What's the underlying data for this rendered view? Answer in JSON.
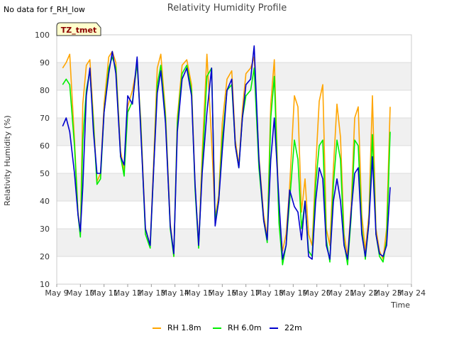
{
  "status_text": "No data for f_RH_low",
  "chart_data": {
    "type": "line",
    "title": "Relativity Humidity Profile",
    "xlabel": "Time",
    "ylabel": "Relativity Humidity (%)",
    "ylim": [
      10,
      100
    ],
    "xlim": [
      9,
      24
    ],
    "yticks": [
      10,
      20,
      30,
      40,
      50,
      60,
      70,
      80,
      90,
      100
    ],
    "xticks": [
      {
        "v": 9,
        "label": "May 9"
      },
      {
        "v": 10,
        "label": "May 10"
      },
      {
        "v": 11,
        "label": "May 11"
      },
      {
        "v": 12,
        "label": "May 12"
      },
      {
        "v": 13,
        "label": "May 13"
      },
      {
        "v": 14,
        "label": "May 14"
      },
      {
        "v": 15,
        "label": "May 15"
      },
      {
        "v": 16,
        "label": "May 16"
      },
      {
        "v": 17,
        "label": "May 17"
      },
      {
        "v": 18,
        "label": "May 18"
      },
      {
        "v": 19,
        "label": "May 19"
      },
      {
        "v": 20,
        "label": "May 20"
      },
      {
        "v": 21,
        "label": "May 21"
      },
      {
        "v": 22,
        "label": "May 22"
      },
      {
        "v": 23,
        "label": "May 23"
      },
      {
        "v": 24,
        "label": "May 24"
      }
    ],
    "badge": "TZ_tmet",
    "grid": true,
    "legend_position": "bottom",
    "series": [
      {
        "name": "RH 1.8m",
        "color": "#ffa500",
        "x": [
          9.25,
          9.4,
          9.55,
          9.75,
          9.9,
          10.0,
          10.1,
          10.25,
          10.4,
          10.55,
          10.7,
          10.85,
          11.0,
          11.2,
          11.35,
          11.5,
          11.7,
          11.85,
          12.0,
          12.2,
          12.4,
          12.55,
          12.75,
          12.95,
          13.1,
          13.25,
          13.4,
          13.6,
          13.8,
          13.95,
          14.1,
          14.3,
          14.5,
          14.7,
          14.85,
          15.0,
          15.15,
          15.35,
          15.55,
          15.7,
          15.85,
          16.0,
          16.2,
          16.4,
          16.55,
          16.7,
          16.85,
          17.0,
          17.2,
          17.35,
          17.55,
          17.75,
          17.9,
          18.05,
          18.2,
          18.4,
          18.55,
          18.7,
          18.85,
          19.05,
          19.2,
          19.35,
          19.5,
          19.65,
          19.8,
          19.95,
          20.1,
          20.25,
          20.4,
          20.55,
          20.7,
          20.85,
          21.0,
          21.15,
          21.3,
          21.45,
          21.6,
          21.75,
          21.9,
          22.05,
          22.2,
          22.35,
          22.5,
          22.65,
          22.8,
          22.95,
          23.1
        ],
        "y": [
          88,
          90,
          93,
          62,
          36,
          28,
          75,
          89,
          91,
          70,
          47,
          50,
          75,
          92,
          94,
          90,
          58,
          51,
          74,
          80,
          89,
          70,
          30,
          24,
          55,
          88,
          93,
          72,
          32,
          20,
          70,
          89,
          91,
          82,
          46,
          24,
          57,
          93,
          62,
          34,
          42,
          68,
          84,
          87,
          62,
          53,
          73,
          86,
          88,
          92,
          56,
          35,
          27,
          75,
          91,
          34,
          22,
          28,
          45,
          78,
          74,
          36,
          48,
          28,
          24,
          52,
          76,
          82,
          30,
          24,
          52,
          75,
          63,
          28,
          20,
          38,
          70,
          74,
          35,
          22,
          35,
          78,
          30,
          22,
          19,
          30,
          74
        ]
      },
      {
        "name": "RH 6.0m",
        "color": "#00ee00",
        "x": [
          9.25,
          9.4,
          9.55,
          9.75,
          9.9,
          10.0,
          10.1,
          10.25,
          10.4,
          10.55,
          10.7,
          10.85,
          11.0,
          11.2,
          11.35,
          11.5,
          11.7,
          11.85,
          12.0,
          12.2,
          12.4,
          12.55,
          12.75,
          12.95,
          13.1,
          13.25,
          13.4,
          13.6,
          13.8,
          13.95,
          14.1,
          14.3,
          14.5,
          14.7,
          14.85,
          15.0,
          15.15,
          15.35,
          15.55,
          15.7,
          15.85,
          16.0,
          16.2,
          16.4,
          16.55,
          16.7,
          16.85,
          17.0,
          17.2,
          17.35,
          17.55,
          17.75,
          17.9,
          18.05,
          18.2,
          18.4,
          18.55,
          18.7,
          18.85,
          19.05,
          19.2,
          19.35,
          19.5,
          19.65,
          19.8,
          19.95,
          20.1,
          20.25,
          20.4,
          20.55,
          20.7,
          20.85,
          21.0,
          21.15,
          21.3,
          21.45,
          21.6,
          21.75,
          21.9,
          22.05,
          22.2,
          22.35,
          22.5,
          22.65,
          22.8,
          22.95,
          23.1
        ],
        "y": [
          82,
          84,
          82,
          60,
          35,
          27,
          62,
          80,
          87,
          68,
          46,
          48,
          72,
          88,
          92,
          88,
          56,
          49,
          72,
          76,
          90,
          68,
          28,
          23,
          52,
          82,
          89,
          70,
          30,
          20,
          68,
          86,
          89,
          80,
          44,
          23,
          52,
          85,
          88,
          33,
          40,
          62,
          80,
          82,
          60,
          52,
          70,
          78,
          80,
          88,
          52,
          33,
          25,
          70,
          85,
          32,
          17,
          24,
          40,
          62,
          55,
          30,
          40,
          22,
          20,
          46,
          60,
          62,
          26,
          18,
          46,
          62,
          55,
          25,
          17,
          34,
          62,
          60,
          30,
          19,
          32,
          64,
          28,
          20,
          18,
          26,
          65
        ]
      },
      {
        "name": "22m",
        "color": "#0000cd",
        "x": [
          9.25,
          9.4,
          9.55,
          9.75,
          9.9,
          10.0,
          10.1,
          10.25,
          10.4,
          10.55,
          10.7,
          10.85,
          11.0,
          11.2,
          11.35,
          11.5,
          11.7,
          11.85,
          12.0,
          12.2,
          12.4,
          12.55,
          12.75,
          12.95,
          13.1,
          13.25,
          13.4,
          13.6,
          13.8,
          13.95,
          14.1,
          14.3,
          14.5,
          14.7,
          14.85,
          15.0,
          15.15,
          15.35,
          15.55,
          15.7,
          15.85,
          16.0,
          16.2,
          16.4,
          16.55,
          16.7,
          16.85,
          17.0,
          17.2,
          17.35,
          17.55,
          17.75,
          17.9,
          18.05,
          18.2,
          18.4,
          18.55,
          18.7,
          18.85,
          19.05,
          19.2,
          19.35,
          19.5,
          19.65,
          19.8,
          19.95,
          20.1,
          20.25,
          20.4,
          20.55,
          20.7,
          20.85,
          21.0,
          21.15,
          21.3,
          21.45,
          21.6,
          21.75,
          21.9,
          22.05,
          22.2,
          22.35,
          22.5,
          22.65,
          22.8,
          22.95,
          23.1
        ],
        "y": [
          67,
          70,
          65,
          50,
          35,
          29,
          45,
          78,
          88,
          65,
          50,
          50,
          72,
          86,
          94,
          86,
          56,
          53,
          78,
          75,
          92,
          66,
          30,
          24,
          52,
          79,
          87,
          68,
          31,
          21,
          65,
          84,
          88,
          78,
          46,
          24,
          50,
          72,
          88,
          31,
          40,
          58,
          80,
          84,
          60,
          52,
          70,
          82,
          84,
          96,
          55,
          33,
          26,
          55,
          70,
          40,
          19,
          24,
          44,
          38,
          36,
          26,
          40,
          20,
          19,
          40,
          52,
          48,
          24,
          19,
          40,
          48,
          40,
          24,
          19,
          36,
          50,
          52,
          28,
          20,
          32,
          56,
          28,
          21,
          20,
          24,
          45
        ]
      }
    ]
  }
}
